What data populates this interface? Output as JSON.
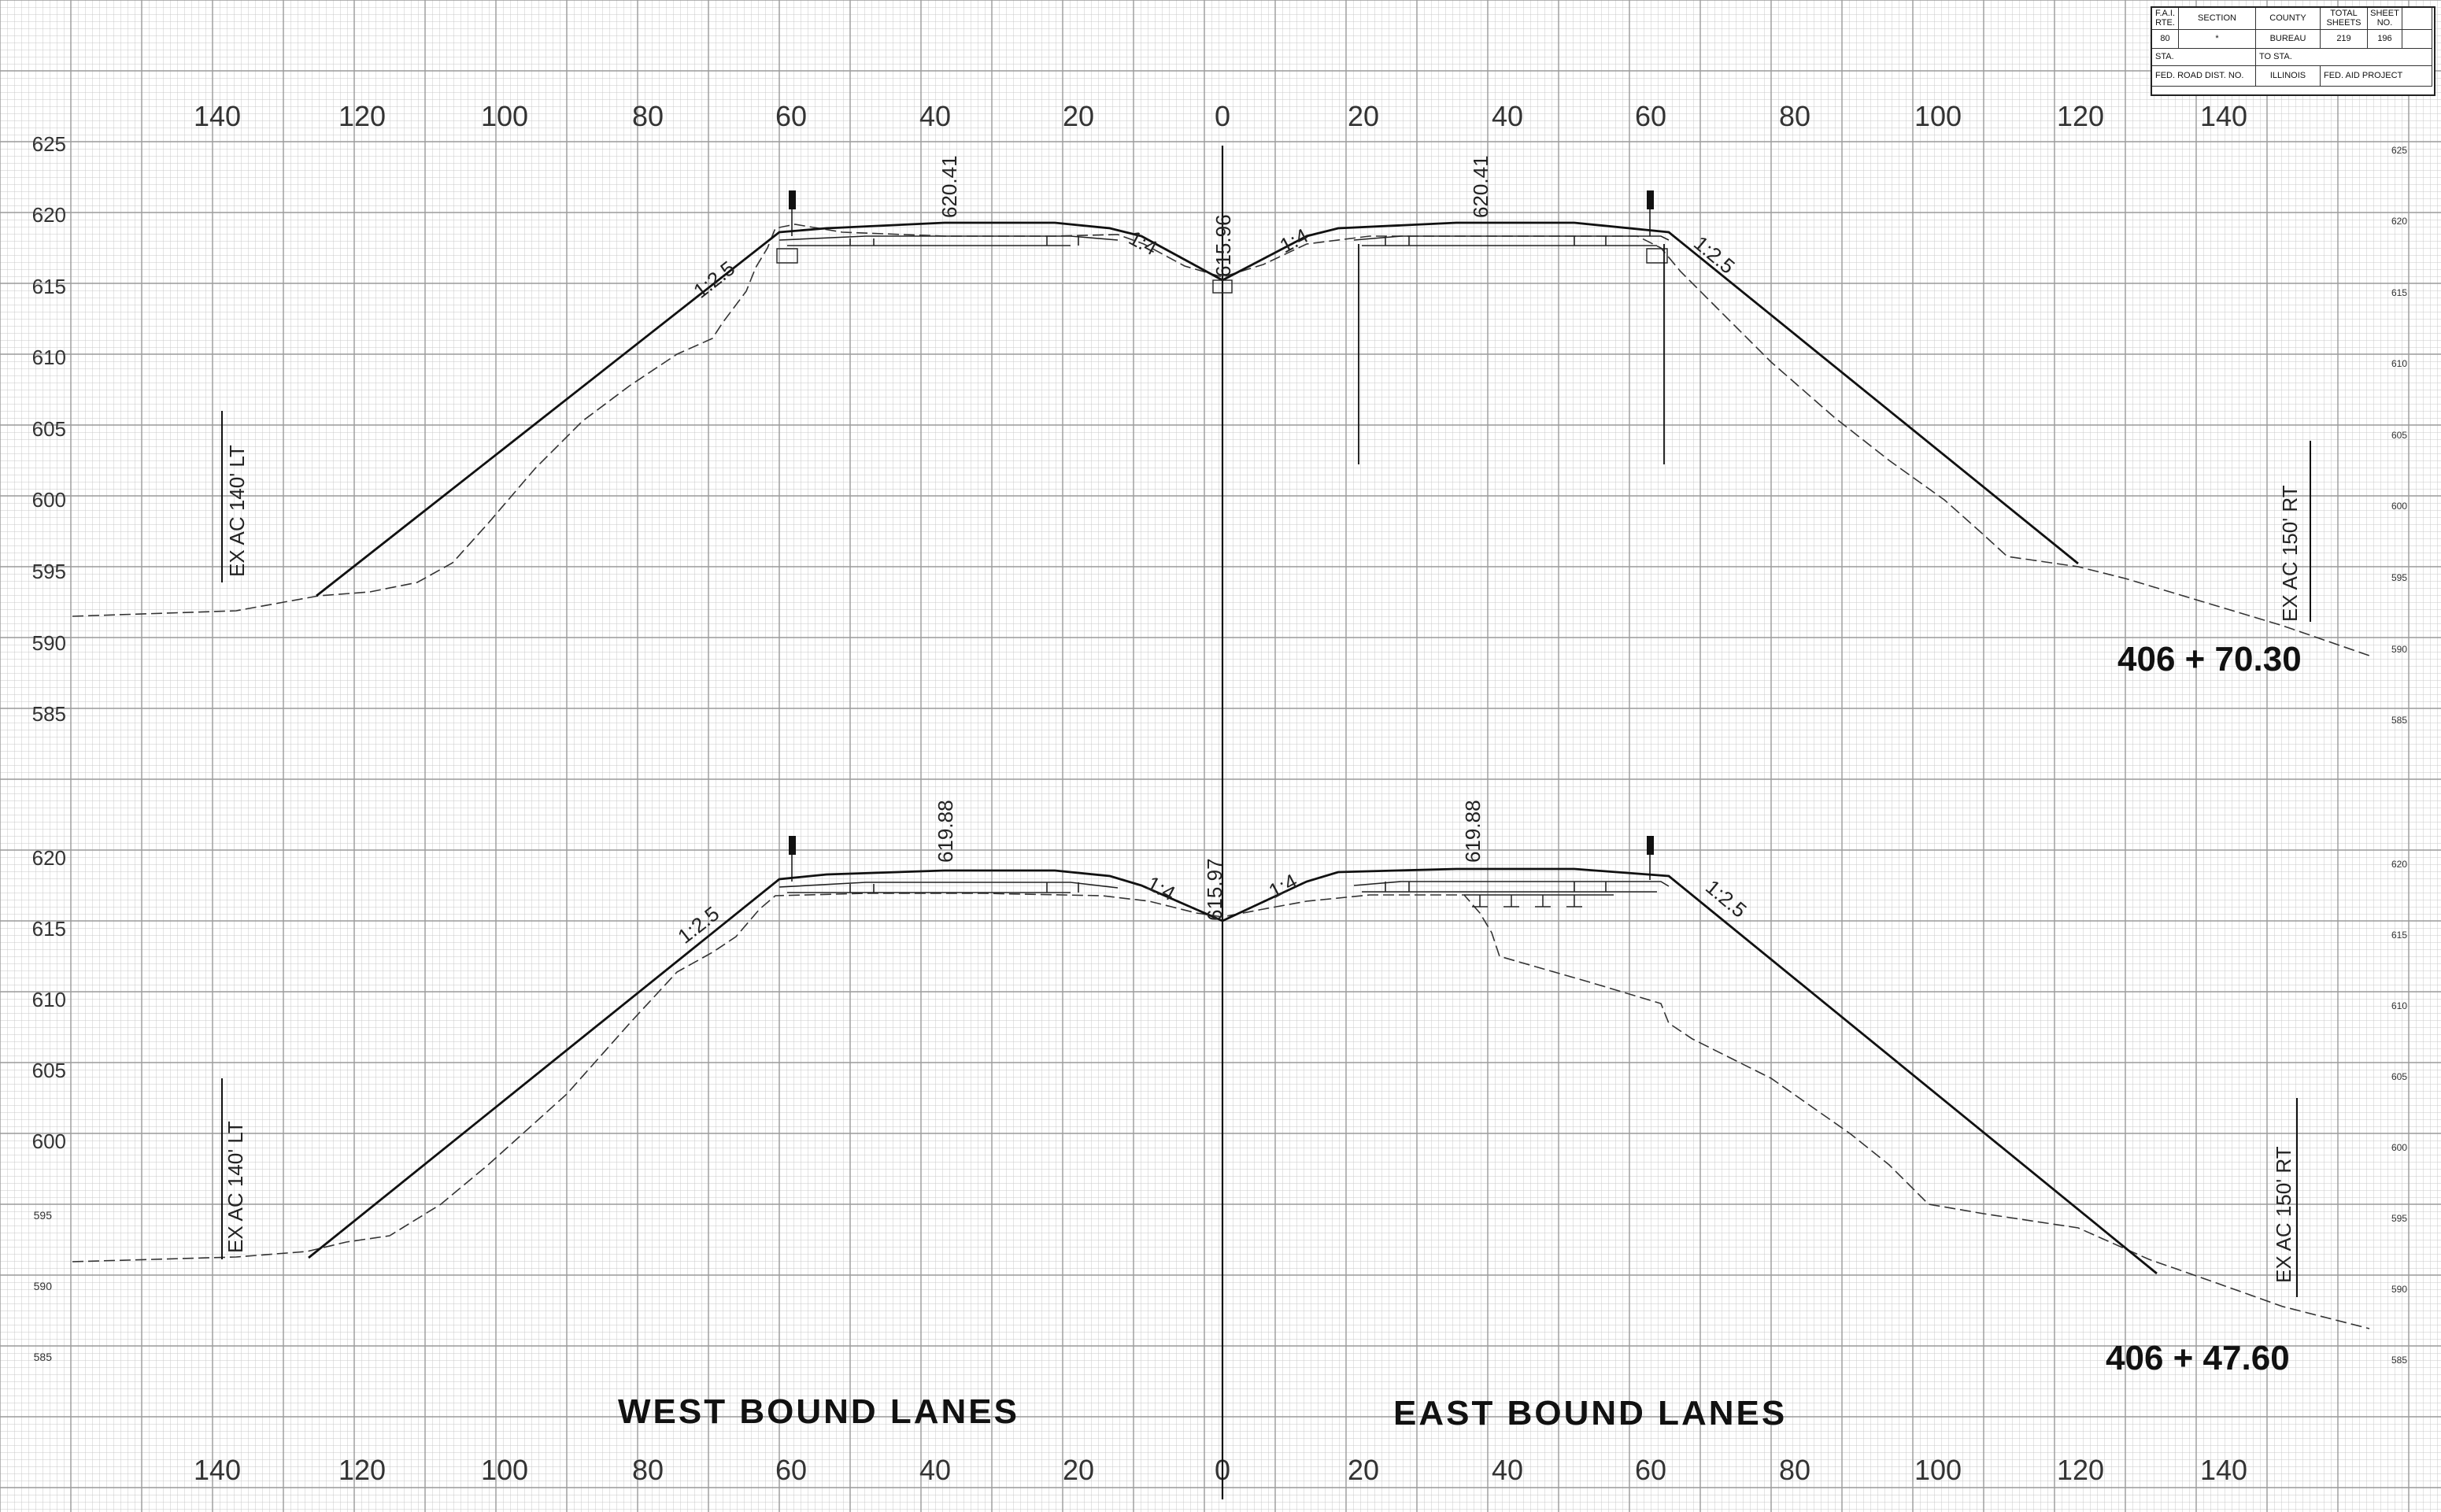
{
  "title_block": {
    "fai_rte": "F.A.I. RTE.",
    "section": "SECTION",
    "county": "COUNTY",
    "total_sheets_label": "TOTAL SHEETS",
    "sheet_no_label": "SHEET NO.",
    "ro": "80",
    "section_value": "*",
    "county_value": "BUREAU",
    "total_sheets": "219",
    "sheet_no": "196",
    "sta": "STA.",
    "to_sta": "TO STA.",
    "fed_road_dist": "FED. ROAD DIST. NO.",
    "state": "ILLINOIS",
    "fed_aid_project": "FED. AID PROJECT"
  },
  "offset_ticks": [
    "140",
    "120",
    "100",
    "80",
    "60",
    "40",
    "20",
    "0",
    "20",
    "40",
    "60",
    "80",
    "100",
    "120",
    "140"
  ],
  "top_section": {
    "station": "406 + 70.30",
    "elevations": [
      "625",
      "620",
      "615",
      "610",
      "605",
      "600",
      "595",
      "590",
      "585"
    ],
    "right_elevations": [
      "625",
      "620",
      "615",
      "610",
      "605",
      "600",
      "595",
      "590",
      "585"
    ],
    "left_shoulder_elev": "620.41",
    "median_elev": "615.96",
    "right_shoulder_elev": "620.41",
    "slope_left": "1:2.5",
    "slope_median_left": "1:4",
    "slope_median_right": "1:4",
    "slope_right": "1:2.5",
    "left_limit": "EX AC 140' LT",
    "right_limit": "EX AC 150' RT"
  },
  "bottom_section": {
    "station": "406 + 47.60",
    "elevations": [
      "620",
      "615",
      "610",
      "605",
      "600",
      "595",
      "590",
      "585"
    ],
    "right_elevations": [
      "620",
      "615",
      "610",
      "605",
      "600",
      "595",
      "590",
      "585"
    ],
    "left_shoulder_elev": "619.88",
    "median_elev": "615.97",
    "right_shoulder_elev": "619.88",
    "slope_left": "1:2.5",
    "slope_median_left": "1:4",
    "slope_median_right": "1:4",
    "slope_right": "1:2.5",
    "left_limit": "EX AC 140' LT",
    "right_limit": "EX AC 150' RT"
  },
  "labels": {
    "westbound": "WEST BOUND LANES",
    "eastbound": "EAST BOUND LANES"
  }
}
